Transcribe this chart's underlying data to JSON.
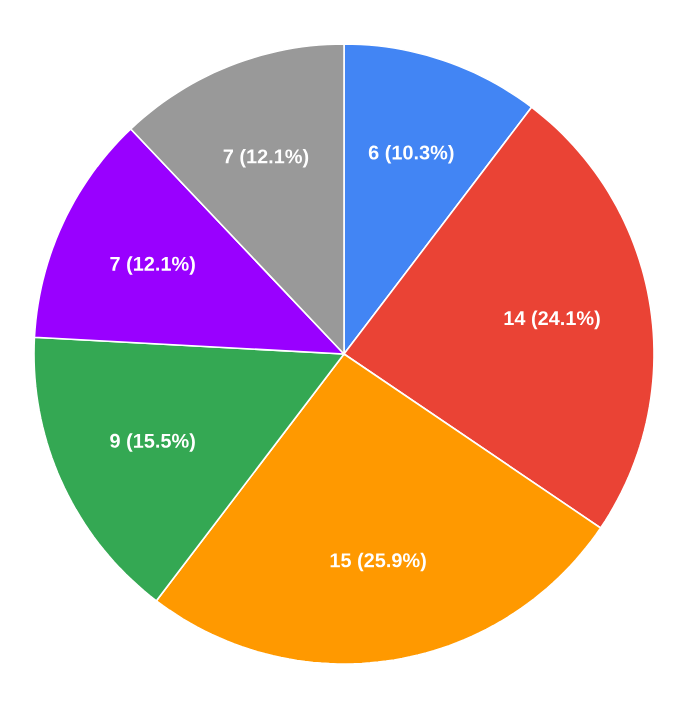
{
  "chart_data": {
    "type": "pie",
    "categories": [
      null,
      null,
      null,
      null,
      null,
      null
    ],
    "values": [
      6,
      14,
      15,
      9,
      7,
      7
    ],
    "colors": [
      "#4285f4",
      "#ea4335",
      "#ff9900",
      "#34a853",
      "#9900ff",
      "#999999"
    ],
    "value_labels": [
      "6 (10.3%)",
      "14 (24.1%)",
      "15 (25.9%)",
      "9 (15.5%)",
      "7 (12.1%)",
      "7 (12.1%)"
    ]
  }
}
